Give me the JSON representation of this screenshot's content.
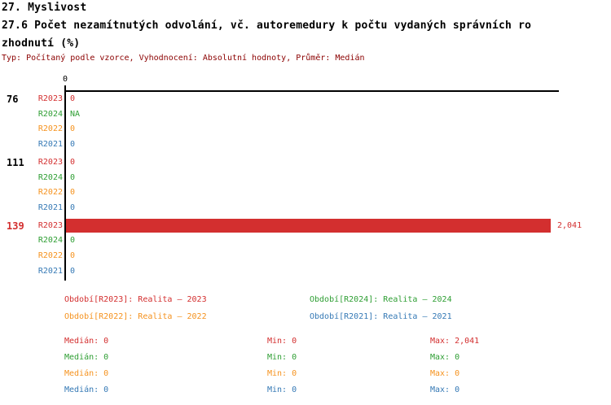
{
  "header": {
    "line1": "27. Myslivost",
    "line2": "27.6 Počet nezamítnutých odvolání, vč. autoremedury k počtu vydaných správních ro",
    "line3": "zhodnutí (%)",
    "meta": "Typ: Počítaný podle vzorce, Vyhodnocení: Absolutní hodnoty, Průměr: Medián"
  },
  "colors": {
    "R2023": "#d32f2f",
    "R2024": "#2e9e33",
    "R2022": "#f5921e",
    "R2021": "#3579b5",
    "meta_text": "#8b0000",
    "axis": "#000000",
    "group_label_default": "#000000",
    "group_label_highlight": "#d32f2f"
  },
  "chart_data": {
    "type": "bar",
    "orientation": "horizontal",
    "title": "27.6 Počet nezamítnutých odvolání, vč. autoremedury k počtu vydaných správních rozhodnutí (%)",
    "axis_tick_label": "0",
    "xlim": [
      0,
      2041
    ],
    "series_order": [
      "R2023",
      "R2024",
      "R2022",
      "R2021"
    ],
    "groups": [
      {
        "label": "76",
        "highlighted": false,
        "rows": [
          {
            "year": "R2023",
            "value": 0,
            "display": "0"
          },
          {
            "year": "R2024",
            "value": null,
            "display": "NA"
          },
          {
            "year": "R2022",
            "value": 0,
            "display": "0"
          },
          {
            "year": "R2021",
            "value": 0,
            "display": "0"
          }
        ]
      },
      {
        "label": "111",
        "highlighted": false,
        "rows": [
          {
            "year": "R2023",
            "value": 0,
            "display": "0"
          },
          {
            "year": "R2024",
            "value": 0,
            "display": "0"
          },
          {
            "year": "R2022",
            "value": 0,
            "display": "0"
          },
          {
            "year": "R2021",
            "value": 0,
            "display": "0"
          }
        ]
      },
      {
        "label": "139",
        "highlighted": true,
        "rows": [
          {
            "year": "R2023",
            "value": 2041,
            "display": "2,041"
          },
          {
            "year": "R2024",
            "value": 0,
            "display": "0"
          },
          {
            "year": "R2022",
            "value": 0,
            "display": "0"
          },
          {
            "year": "R2021",
            "value": 0,
            "display": "0"
          }
        ]
      }
    ]
  },
  "legend": [
    {
      "series": "R2023",
      "text": "Období[R2023]: Realita – 2023"
    },
    {
      "series": "R2024",
      "text": "Období[R2024]: Realita – 2024"
    },
    {
      "series": "R2022",
      "text": "Období[R2022]: Realita – 2022"
    },
    {
      "series": "R2021",
      "text": "Období[R2021]: Realita – 2021"
    }
  ],
  "stats_labels": {
    "median": "Medián",
    "min": "Min",
    "max": "Max"
  },
  "stats": [
    {
      "series": "R2023",
      "median": "0",
      "min": "0",
      "max": "2,041"
    },
    {
      "series": "R2024",
      "median": "0",
      "min": "0",
      "max": "0"
    },
    {
      "series": "R2022",
      "median": "0",
      "min": "0",
      "max": "0"
    },
    {
      "series": "R2021",
      "median": "0",
      "min": "0",
      "max": "0"
    }
  ]
}
